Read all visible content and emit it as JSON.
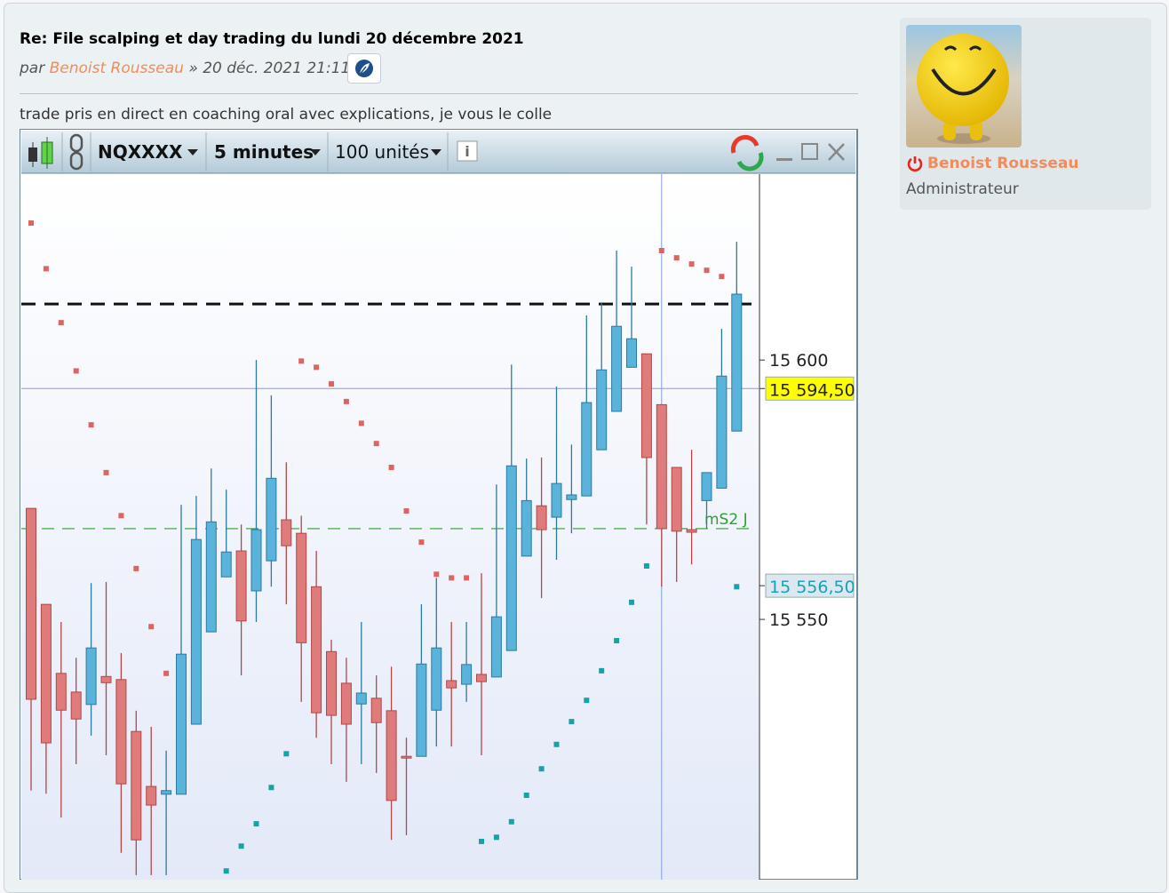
{
  "post": {
    "title": "Re: File scalping et day trading du lundi 20 décembre 2021",
    "byline_prefix": "par",
    "author": "Benoist Rousseau",
    "separator": "»",
    "date": "20 déc. 2021 21:11",
    "body": "trade pris en direct en coaching oral avec explications, je vous le colle"
  },
  "toolbar": {
    "instrument": "NQXXXX",
    "period": "5 minutes",
    "units": "100 unités"
  },
  "profile": {
    "name": "Benoist Rousseau",
    "role": "Administrateur"
  },
  "chart_data": {
    "type": "candlestick",
    "open": [
      15571.4,
      15552.9,
      15539.6,
      15536,
      15533.6,
      15539,
      15538.4,
      15528.4,
      15517.8,
      15516.3,
      15516.3,
      15529.8,
      15547.6,
      15558.2,
      15563.2,
      15555.5,
      15561.3,
      15569.2,
      15566.6,
      15556.3,
      15543.8,
      15537.7,
      15533.7,
      15534.8,
      15532.4,
      15523.6,
      15523.6,
      15532.5,
      15538.2,
      15537.5,
      15539.4,
      15538.9,
      15544,
      15562.2,
      15571.9,
      15569.7,
      15573.1,
      15573.8,
      15582.7,
      15590.1,
      15598.6,
      15601.2,
      15591.4,
      15579.3,
      15567.3,
      15572.9,
      15575.3,
      15586.3
    ],
    "high": [
      15571.4,
      15552.9,
      15549.5,
      15542.6,
      15557,
      15557.2,
      15543.5,
      15532.4,
      15529.3,
      15524.7,
      15572.1,
      15573.8,
      15579.1,
      15575,
      15568.3,
      15600,
      15593.2,
      15580.3,
      15570,
      15563.2,
      15546.1,
      15542.6,
      15549.5,
      15539.2,
      15540.9,
      15527.2,
      15552.9,
      15558,
      15549.5,
      15549.5,
      15558.9,
      15576,
      15599.1,
      15581,
      15581.2,
      15594.9,
      15583.7,
      15608.6,
      15611.1,
      15621.1,
      15618,
      15601.2,
      15591.4,
      15579.3,
      15582.7,
      15578.3,
      15606,
      15622.8
    ],
    "low": [
      15517,
      15516.4,
      15511.8,
      15522.1,
      15527.6,
      15523.8,
      15505,
      15500.7,
      15500.7,
      15500.7,
      15516.3,
      15529.8,
      15547.6,
      15558.2,
      15539.2,
      15549.5,
      15556.3,
      15552.9,
      15534.1,
      15527.2,
      15522.1,
      15518.7,
      15522.1,
      15520.4,
      15507.5,
      15508.4,
      15523.6,
      15525.5,
      15525.5,
      15534.1,
      15523.8,
      15538.9,
      15544,
      15562.2,
      15554.1,
      15561.5,
      15566.6,
      15573.8,
      15582.7,
      15590.1,
      15598.6,
      15568.3,
      15556.3,
      15557.2,
      15560.6,
      15567.5,
      15575.3,
      15586.3
    ],
    "close": [
      15534.6,
      15526.2,
      15532.5,
      15530.8,
      15544.5,
      15537.8,
      15518.3,
      15507.5,
      15514.2,
      15517,
      15543.3,
      15565.4,
      15568.8,
      15563,
      15549.7,
      15567.3,
      15577.2,
      15564.2,
      15545.5,
      15532,
      15531.5,
      15529.8,
      15535.8,
      15530.1,
      15515.1,
      15523.3,
      15541.4,
      15544.5,
      15536.8,
      15541.3,
      15538,
      15550.5,
      15579.6,
      15572.9,
      15567.3,
      15576.2,
      15574,
      15591.8,
      15598.1,
      15606.5,
      15604.1,
      15581.2,
      15567.5,
      15567,
      15566.8,
      15578.3,
      15596.9,
      15612.7
    ],
    "sar": [
      15626.4,
      15617.6,
      15607.2,
      15597.9,
      15587.5,
      15578.3,
      15570,
      15559.8,
      15548.6,
      15539.6,
      null,
      null,
      null,
      15501.5,
      15506.3,
      15510.6,
      15517.6,
      15524.1,
      15599.8,
      15598.6,
      15595.4,
      15592,
      15587.8,
      15583.9,
      15579.3,
      15570.9,
      15564.9,
      15558.7,
      15558,
      15558,
      15507.2,
      15508,
      15511,
      15516.1,
      15521.2,
      15525.9,
      15530.3,
      15534.4,
      15540.1,
      15545.9,
      15553.3,
      15560.3,
      15621.1,
      15619.7,
      15618.5,
      15617.3,
      15616.1,
      15556.3
    ],
    "up_color": "#5ab3da",
    "down_color": "#e07b7b",
    "sar_above_color": "#e06363",
    "sar_below_color": "#17a3a3",
    "ylim": [
      15500,
      15636
    ],
    "yticks": [
      {
        "value": 15600,
        "label": "15 600"
      },
      {
        "value": 15550,
        "label": "15 550"
      }
    ],
    "levels": [
      {
        "value": 15610.8,
        "color": "#111111"
      },
      {
        "value": 15567.5,
        "color": "#2f9e2f",
        "label": "mS2 J"
      }
    ],
    "price_labels": [
      {
        "value": 15594.5,
        "label": "15 594,50",
        "background": "#ffff00",
        "color": "#222222"
      },
      {
        "value": 15556.5,
        "label": "15 556,50",
        "background": "#dbe8f0",
        "color": "#1aa0b8"
      }
    ],
    "crosshair_index": 42
  }
}
